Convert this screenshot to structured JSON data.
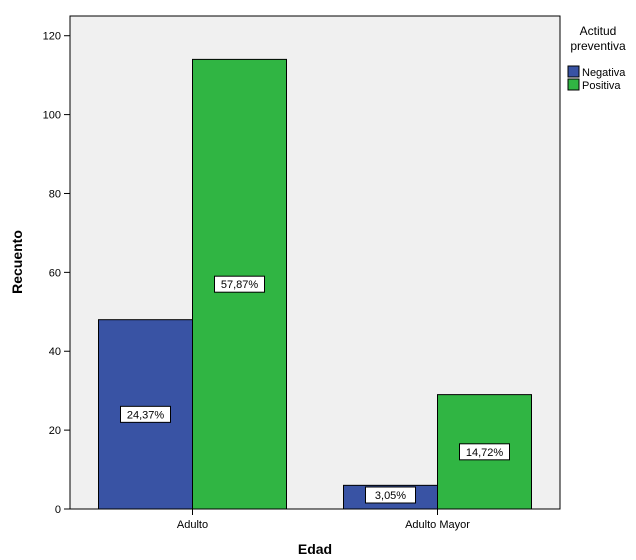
{
  "chart_data": {
    "type": "bar",
    "categories": [
      "Adulto",
      "Adulto Mayor"
    ],
    "series": [
      {
        "name": "Negativa",
        "values": [
          48,
          6
        ],
        "labels": [
          "24,37%",
          "3,05%"
        ],
        "color": "#3953a4"
      },
      {
        "name": "Positiva",
        "values": [
          114,
          29
        ],
        "labels": [
          "57,87%",
          "14,72%"
        ],
        "color": "#30b543"
      }
    ],
    "xlabel": "Edad",
    "ylabel": "Recuento",
    "ylim": [
      0,
      125
    ],
    "yticks": [
      0,
      20,
      40,
      60,
      80,
      100,
      120
    ],
    "legend": {
      "title_lines": [
        "Actitud",
        "preventiva"
      ],
      "placement": "top-right"
    },
    "plot_background": "#f0f0f0",
    "grid": false
  }
}
